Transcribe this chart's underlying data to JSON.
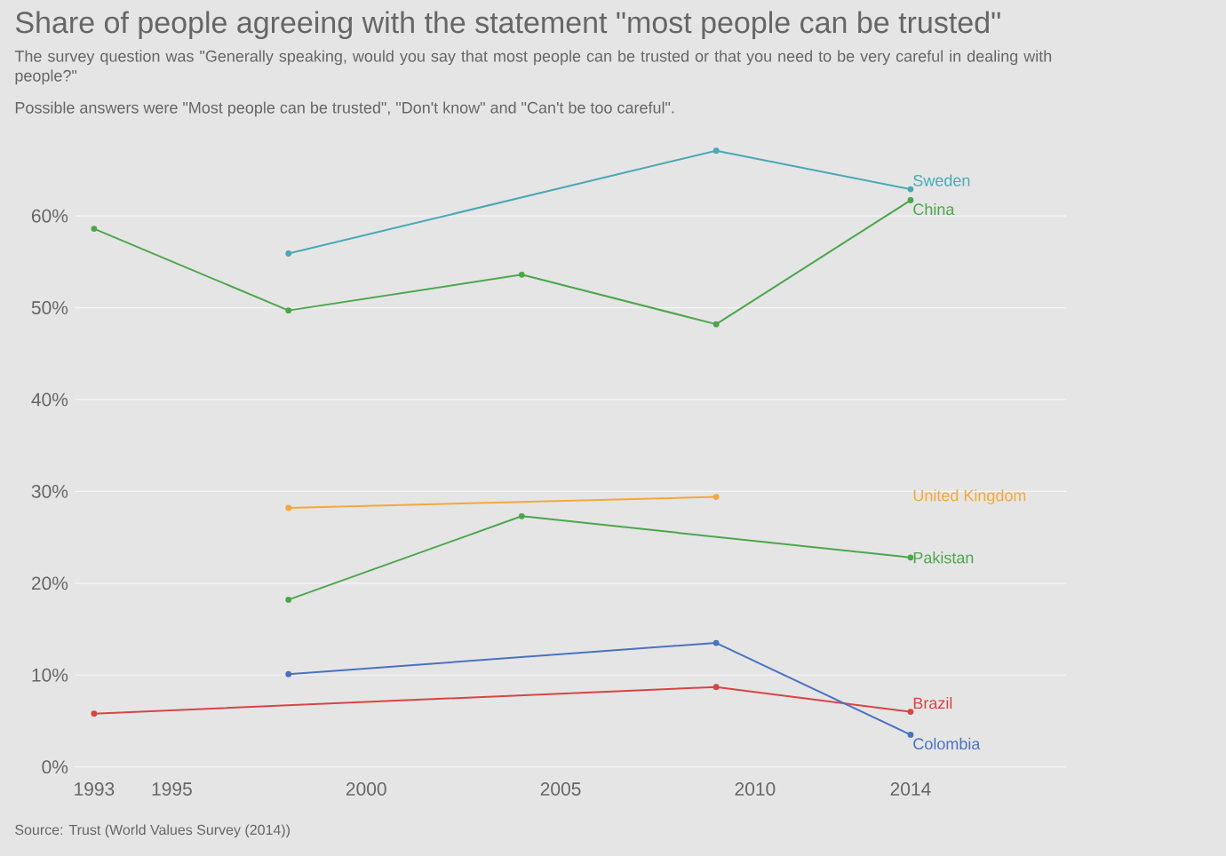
{
  "chart_data": {
    "type": "line",
    "title": "Share of people agreeing with the statement \"most people can be trusted\"",
    "subtitle": "The survey question was \"Generally speaking, would you say that most people can be trusted or that you need to be very careful in dealing with people?\"",
    "annotations": [
      "Possible answers were \"Most people can be trusted\", \"Don't know\" and \"Can't be too careful\".",
      "Source: Trust (World Values Survey (2014))"
    ],
    "xlim": [
      1992.5,
      2018
    ],
    "xticks": [
      1993,
      1995,
      2000,
      2005,
      2010,
      2014
    ],
    "ylim": [
      -1,
      69
    ],
    "yticks": [
      {
        "value": 0,
        "label": "0%"
      },
      {
        "value": 10,
        "label": "10%"
      },
      {
        "value": 20,
        "label": "20%"
      },
      {
        "value": 30,
        "label": "30%"
      },
      {
        "value": 40,
        "label": "40%"
      },
      {
        "value": 50,
        "label": "50%"
      },
      {
        "value": 60,
        "label": "60%"
      }
    ],
    "grid": "y",
    "legend": false,
    "marker": "circle",
    "line_style": "solid",
    "series": [
      {
        "name": "Sweden",
        "color": "#4aa8b4",
        "x": [
          1998,
          2009,
          2014
        ],
        "values": [
          55.9,
          67.1,
          62.9
        ]
      },
      {
        "name": "China",
        "color": "#4ca64c",
        "x": [
          1993,
          1998,
          2004,
          2009,
          2014
        ],
        "values": [
          58.6,
          49.7,
          53.6,
          48.2,
          61.7
        ]
      },
      {
        "name": "United Kingdom",
        "color": "#f5a83a",
        "x": [
          1998,
          2009
        ],
        "values": [
          28.2,
          29.4
        ]
      },
      {
        "name": "Pakistan",
        "color": "#4ca64c",
        "x": [
          1998,
          2004,
          2014
        ],
        "values": [
          18.2,
          27.3,
          22.8
        ]
      },
      {
        "name": "Brazil",
        "color": "#d94444",
        "x": [
          1993,
          2009,
          2014
        ],
        "values": [
          5.8,
          8.7,
          6.0
        ]
      },
      {
        "name": "Colombia",
        "color": "#4a72c0",
        "x": [
          1998,
          2009,
          2014
        ],
        "values": [
          10.1,
          13.5,
          3.5
        ]
      }
    ]
  }
}
